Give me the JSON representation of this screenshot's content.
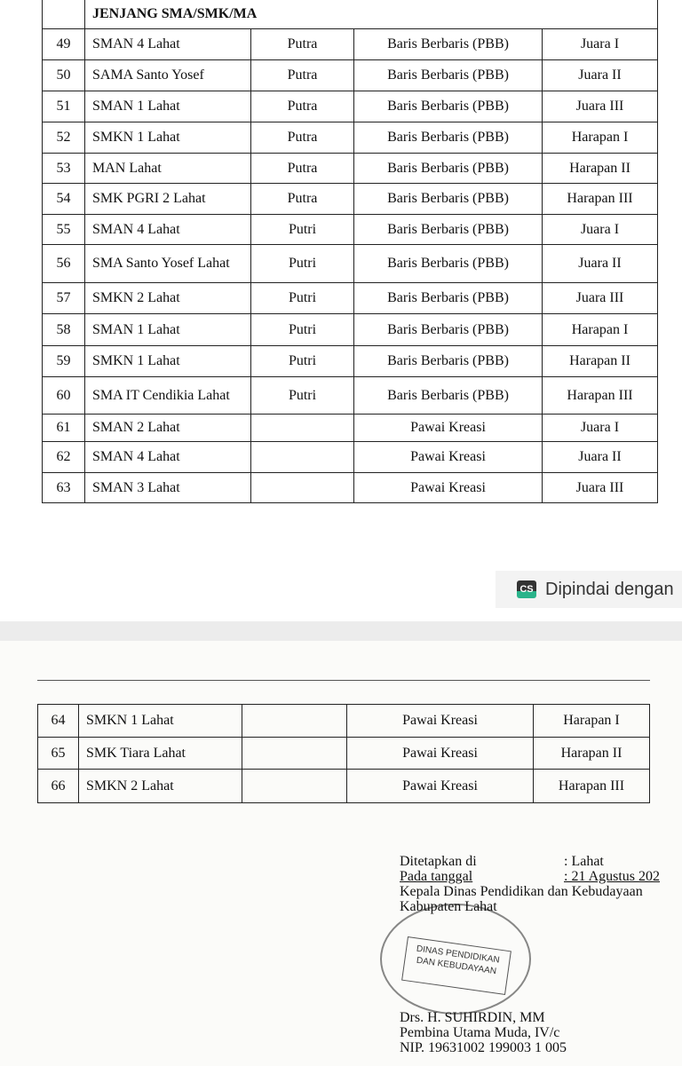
{
  "table1": {
    "header": "JENJANG SMA/SMK/MA",
    "rows": [
      [
        "49",
        "SMAN 4 Lahat",
        "Putra",
        "Baris Berbaris (PBB)",
        "Juara I"
      ],
      [
        "50",
        "SAMA Santo Yosef",
        "Putra",
        "Baris Berbaris (PBB)",
        "Juara II"
      ],
      [
        "51",
        "SMAN 1 Lahat",
        "Putra",
        "Baris Berbaris (PBB)",
        "Juara III"
      ],
      [
        "52",
        "SMKN 1 Lahat",
        "Putra",
        "Baris Berbaris (PBB)",
        "Harapan I"
      ],
      [
        "53",
        "MAN Lahat",
        "Putra",
        "Baris Berbaris (PBB)",
        "Harapan II"
      ],
      [
        "54",
        "SMK PGRI 2 Lahat",
        "Putra",
        "Baris Berbaris (PBB)",
        "Harapan III"
      ],
      [
        "55",
        "SMAN 4 Lahat",
        "Putri",
        "Baris Berbaris (PBB)",
        "Juara I"
      ],
      [
        "56",
        "SMA Santo Yosef Lahat",
        "Putri",
        "Baris Berbaris (PBB)",
        "Juara II"
      ],
      [
        "57",
        "SMKN 2 Lahat",
        "Putri",
        "Baris Berbaris (PBB)",
        "Juara III"
      ],
      [
        "58",
        "SMAN 1 Lahat",
        "Putri",
        "Baris Berbaris (PBB)",
        "Harapan I"
      ],
      [
        "59",
        "SMKN 1 Lahat",
        "Putri",
        "Baris Berbaris (PBB)",
        "Harapan II"
      ],
      [
        "60",
        "SMA IT Cendikia Lahat",
        "Putri",
        "Baris Berbaris (PBB)",
        "Harapan III"
      ],
      [
        "61",
        "SMAN 2 Lahat",
        "",
        "Pawai Kreasi",
        "Juara I"
      ],
      [
        "62",
        "SMAN 4 Lahat",
        "",
        "Pawai Kreasi",
        "Juara II"
      ],
      [
        "63",
        "SMAN 3 Lahat",
        "",
        "Pawai Kreasi",
        "Juara III"
      ]
    ]
  },
  "scanner_badge": {
    "logo": "CS",
    "text": "Dipindai dengan"
  },
  "table2": {
    "rows": [
      [
        "64",
        "SMKN 1 Lahat",
        "",
        "Pawai Kreasi",
        "Harapan I"
      ],
      [
        "65",
        "SMK Tiara Lahat",
        "",
        "Pawai Kreasi",
        "Harapan II"
      ],
      [
        "66",
        "SMKN 2 Lahat",
        "",
        "Pawai Kreasi",
        "Harapan III"
      ]
    ]
  },
  "signature": {
    "place_label": "Ditetapkan di",
    "place_value": ": Lahat",
    "date_label": "Pada tanggal",
    "date_value": ":  21   Agustus 202",
    "position": "Kepala Dinas Pendidikan dan Kebudayaan",
    "region": "Kabupaten Lahat",
    "stamp_text": "DINAS PENDIDIKAN DAN KEBUDAYAAN",
    "name": "Drs. H. SUHIRDIN, MM",
    "rank": "Pembina Utama Muda, IV/c",
    "nip": "NIP. 19631002 199003 1 005"
  }
}
